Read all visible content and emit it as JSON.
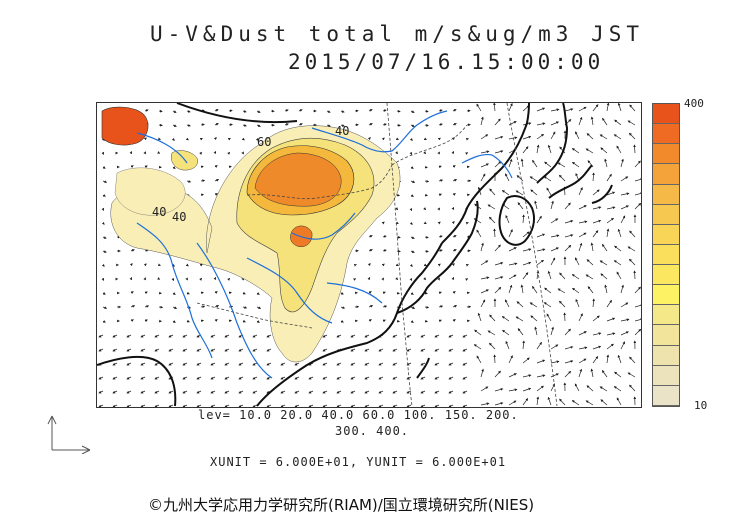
{
  "header": {
    "title": "U-V&Dust total m/s&ug/m3 JST",
    "timestamp": "2015/07/16.15:00:00"
  },
  "map": {
    "contour_labels": [
      "40",
      "40",
      "60",
      "40"
    ],
    "colors": {
      "coast": "#111111",
      "river": "#1e6fd9",
      "boundary": "#444444",
      "arrow": "#222222"
    }
  },
  "colorbar": {
    "max_label": "400",
    "min_label": "10",
    "colors": [
      "#e8531b",
      "#ef6a22",
      "#f28a2c",
      "#f3a33a",
      "#f5b947",
      "#f7c84f",
      "#f8d556",
      "#f9df5c",
      "#fbe760",
      "#fdf264",
      "#f5e889",
      "#f2e49b",
      "#eee3ac",
      "#ece3bd",
      "#ebe3c8"
    ]
  },
  "footer": {
    "levels_line1": "lev= 10.0 20.0 40.0 60.0 100. 150. 200.",
    "levels_line2": "300. 400.",
    "units": "XUNIT = 6.000E+01, YUNIT = 6.000E+01",
    "copyright": "©九州大学応用力学研究所(RIAM)/国立環境研究所(NIES)"
  }
}
